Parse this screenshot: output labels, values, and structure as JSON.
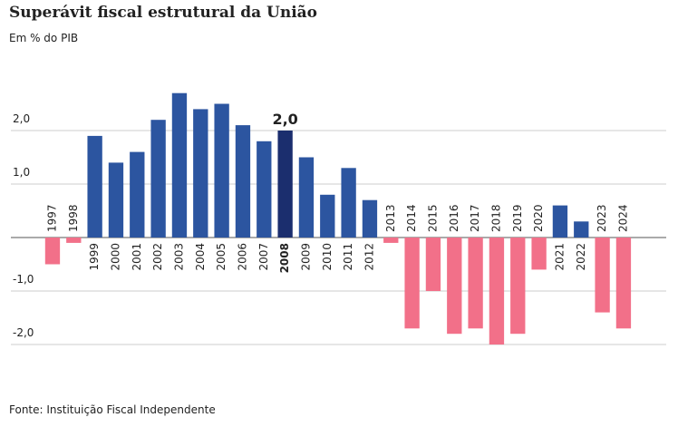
{
  "chart_data": {
    "type": "bar",
    "title": "Superávit fiscal estrutural da União",
    "subtitle": "Em % do PIB",
    "source": "Fonte: Instituição Fiscal Independente",
    "categories": [
      "1997",
      "1998",
      "1999",
      "2000",
      "2001",
      "2002",
      "2003",
      "2004",
      "2005",
      "2006",
      "2007",
      "2008",
      "2009",
      "2010",
      "2011",
      "2012",
      "2013",
      "2014",
      "2015",
      "2016",
      "2017",
      "2018",
      "2019",
      "2020",
      "2021",
      "2022",
      "2023",
      "2024"
    ],
    "values": [
      -0.5,
      -0.1,
      1.9,
      1.4,
      1.6,
      2.2,
      2.7,
      2.4,
      2.5,
      2.1,
      1.8,
      2.0,
      1.5,
      0.8,
      1.3,
      0.7,
      -0.1,
      -1.7,
      -1.0,
      -1.8,
      -1.7,
      -2.0,
      -1.8,
      -0.6,
      0.6,
      0.3,
      -1.4,
      -1.7
    ],
    "value_labels": [
      null,
      null,
      null,
      null,
      null,
      null,
      null,
      null,
      null,
      null,
      null,
      "2,0",
      null,
      null,
      null,
      null,
      null,
      null,
      null,
      null,
      null,
      null,
      null,
      null,
      null,
      null,
      null,
      null
    ],
    "colors": [
      "#f27089",
      "#f27089",
      "#2c55a0",
      "#2c55a0",
      "#2c55a0",
      "#2c55a0",
      "#2c55a0",
      "#2c55a0",
      "#2c55a0",
      "#2c55a0",
      "#2c55a0",
      "#1b2e6e",
      "#2c55a0",
      "#2c55a0",
      "#2c55a0",
      "#2c55a0",
      "#f27089",
      "#f27089",
      "#f27089",
      "#f27089",
      "#f27089",
      "#f27089",
      "#f27089",
      "#f27089",
      "#2c55a0",
      "#2c55a0",
      "#f27089",
      "#f27089"
    ],
    "ylim": [
      -2.2,
      2.8
    ],
    "yticks": [
      {
        "value": -2,
        "label": "-2,0"
      },
      {
        "value": -1,
        "label": "-1,0"
      },
      {
        "value": 1,
        "label": "1,0"
      },
      {
        "value": 2,
        "label": "2,0"
      }
    ],
    "grid": true
  }
}
